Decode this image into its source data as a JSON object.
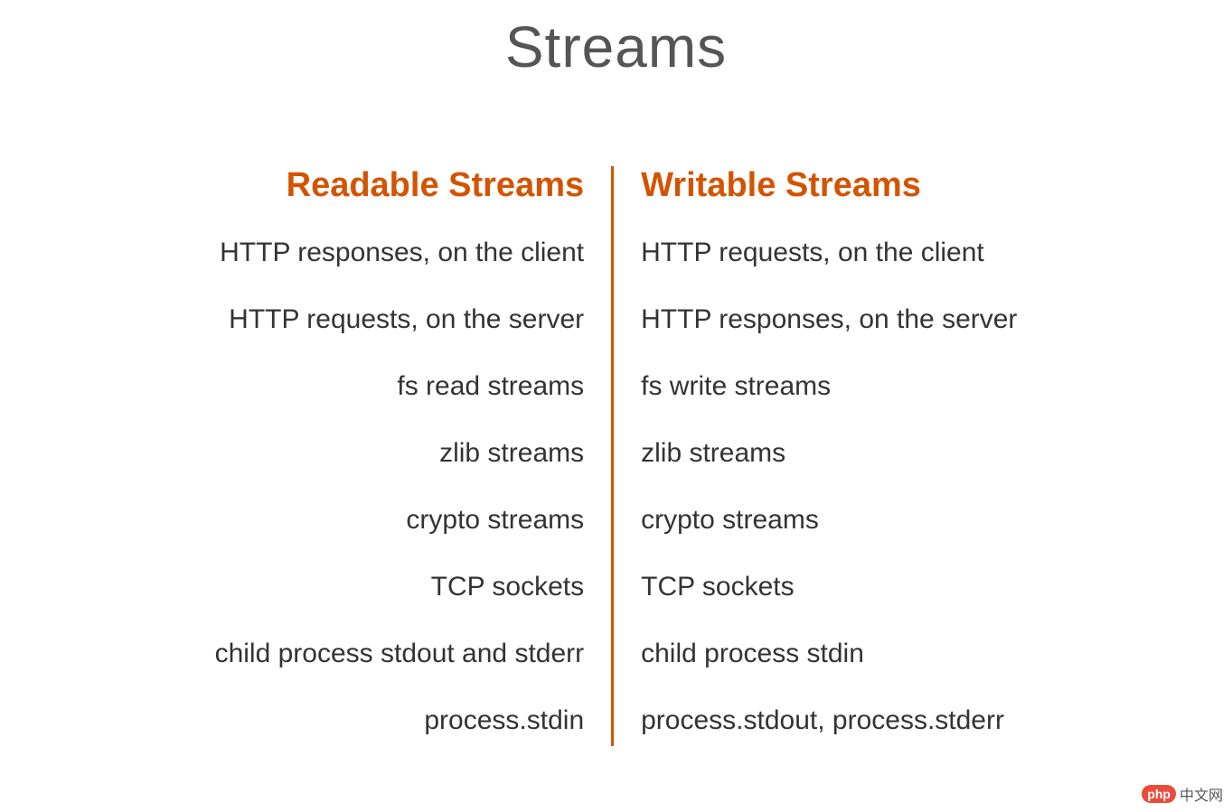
{
  "title": "Streams",
  "colors": {
    "title_color": "#555555",
    "header_color": "#d35400",
    "text_color": "#333333",
    "divider_color": "#d35400",
    "background_color": "#ffffff",
    "watermark_badge_bg": "#e74c3c",
    "watermark_badge_text": "#ffffff"
  },
  "typography": {
    "title_fontsize": 64,
    "title_weight": 300,
    "header_fontsize": 38,
    "header_weight": 600,
    "item_fontsize": 30,
    "item_weight": 500
  },
  "table": {
    "type": "two-column-list",
    "left": {
      "header": "Readable Streams",
      "alignment": "right",
      "items": [
        "HTTP responses, on the client",
        "HTTP requests, on the server",
        "fs read streams",
        "zlib streams",
        "crypto streams",
        "TCP sockets",
        "child process stdout and stderr",
        "process.stdin"
      ]
    },
    "right": {
      "header": "Writable Streams",
      "alignment": "left",
      "items": [
        "HTTP requests, on the client",
        "HTTP responses, on the server",
        "fs write streams",
        "zlib streams",
        "crypto streams",
        "TCP sockets",
        "child process stdin",
        "process.stdout, process.stderr"
      ]
    },
    "divider_width": 3
  },
  "watermark": {
    "badge": "php",
    "text": "中文网"
  }
}
